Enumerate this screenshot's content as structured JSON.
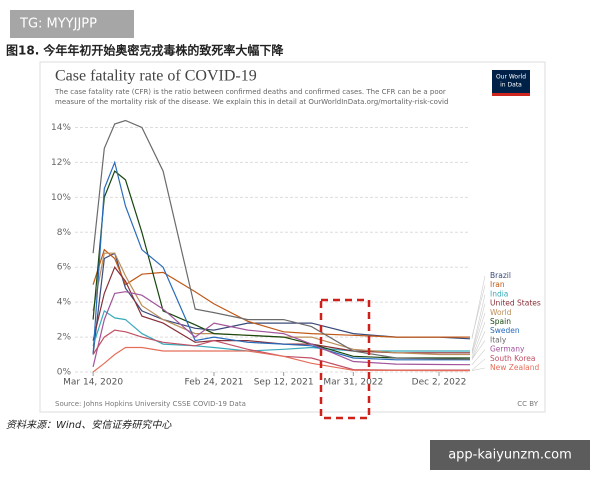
{
  "watermark_top": "TG: MYYJJPP",
  "figure_title": "图18. 今年年初开始奥密克戎毒株的致死率大幅下降",
  "footnote": "资料来源：Wind、安信证券研究中心",
  "watermark_bottom": "app-kaiyunzm.com",
  "chart_data": {
    "type": "line",
    "title": "Case fatality rate of COVID-19",
    "subtitle": [
      "The case fatality rate (CFR) is the ratio between confirmed deaths and confirmed cases. The CFR can be a poor",
      "measure of the mortality risk of the disease. We explain this in detail at OurWorldInData.org/mortality-risk-covid"
    ],
    "logo": [
      "Our World",
      "in Data"
    ],
    "source": "Source: Johns Hopkins University CSSE COVID-19 Data",
    "license": "CC BY",
    "x": [
      "2020-03-14",
      "2020-04-15",
      "2020-05-15",
      "2020-06-15",
      "2020-08-01",
      "2020-10-01",
      "2021-01-01",
      "2021-02-24",
      "2021-06-01",
      "2021-09-12",
      "2021-12-01",
      "2022-03-31",
      "2022-08-01",
      "2022-12-02",
      "2023-03-01"
    ],
    "xlim": [
      "2020-01-22",
      "2023-03-01"
    ],
    "xticks": [
      {
        "value": "2020-03-14",
        "label": "Mar 14, 2020"
      },
      {
        "value": "2021-02-24",
        "label": "Feb 24, 2021"
      },
      {
        "value": "2021-09-12",
        "label": "Sep 12, 2021"
      },
      {
        "value": "2022-03-31",
        "label": "Mar 31, 2022"
      },
      {
        "value": "2022-12-02",
        "label": "Dec 2, 2022"
      }
    ],
    "ylim": [
      0,
      14.6
    ],
    "yticks": [
      {
        "value": 0,
        "label": "0%"
      },
      {
        "value": 2,
        "label": "2%"
      },
      {
        "value": 4,
        "label": "4%"
      },
      {
        "value": 6,
        "label": "6%"
      },
      {
        "value": 8,
        "label": "8%"
      },
      {
        "value": 10,
        "label": "10%"
      },
      {
        "value": 12,
        "label": "12%"
      },
      {
        "value": 14,
        "label": "14%"
      }
    ],
    "grid": true,
    "series": [
      {
        "name": "Brazil",
        "color": "#3a4a7a",
        "values": [
          1.0,
          6.5,
          6.8,
          4.8,
          3.5,
          3.0,
          2.5,
          2.4,
          2.8,
          2.8,
          2.8,
          2.2,
          2.0,
          2.0,
          1.9
        ]
      },
      {
        "name": "Iran",
        "color": "#c05917",
        "values": [
          5.0,
          7.0,
          6.5,
          5.0,
          5.6,
          5.7,
          4.6,
          3.9,
          2.9,
          2.3,
          2.2,
          2.1,
          2.0,
          2.0,
          2.0
        ]
      },
      {
        "name": "India",
        "color": "#38aaba",
        "values": [
          1.5,
          3.5,
          3.1,
          3.0,
          2.2,
          1.6,
          1.5,
          1.4,
          1.2,
          1.3,
          1.4,
          1.2,
          1.2,
          1.2,
          1.2
        ]
      },
      {
        "name": "United States",
        "color": "#883039",
        "values": [
          1.8,
          4.5,
          6.0,
          5.2,
          3.2,
          2.8,
          1.7,
          1.8,
          1.8,
          1.6,
          1.6,
          1.2,
          1.1,
          1.1,
          1.1
        ]
      },
      {
        "name": "World",
        "color": "#bc8e5a",
        "values": [
          3.5,
          6.8,
          6.8,
          5.5,
          3.8,
          3.0,
          2.2,
          2.2,
          2.1,
          2.0,
          2.0,
          1.3,
          1.1,
          1.0,
          1.0
        ]
      },
      {
        "name": "Spain",
        "color": "#18470f",
        "values": [
          3.0,
          10.0,
          11.5,
          11.0,
          8.0,
          3.5,
          2.7,
          2.2,
          2.1,
          2.0,
          1.6,
          0.9,
          0.8,
          0.8,
          0.8
        ]
      },
      {
        "name": "Sweden",
        "color": "#286bbb",
        "values": [
          1.0,
          10.5,
          12.0,
          9.5,
          7.0,
          6.0,
          1.8,
          2.0,
          1.7,
          1.6,
          1.5,
          0.8,
          0.7,
          0.7,
          0.7
        ]
      },
      {
        "name": "Italy",
        "color": "#6b6b6b",
        "values": [
          6.8,
          12.8,
          14.2,
          14.4,
          14.0,
          11.5,
          3.6,
          3.4,
          3.0,
          3.0,
          2.6,
          1.2,
          0.8,
          0.75,
          0.73
        ]
      },
      {
        "name": "Germany",
        "color": "#a2559c",
        "values": [
          0.3,
          3.0,
          4.5,
          4.6,
          4.4,
          3.6,
          2.0,
          2.8,
          2.4,
          2.2,
          1.6,
          0.6,
          0.45,
          0.43,
          0.42
        ]
      },
      {
        "name": "South Korea",
        "color": "#c15065",
        "values": [
          1.0,
          2.0,
          2.4,
          2.3,
          2.0,
          1.7,
          1.5,
          1.8,
          1.3,
          0.9,
          0.8,
          0.14,
          0.11,
          0.11,
          0.11
        ]
      },
      {
        "name": "New Zealand",
        "color": "#e56e5a",
        "values": [
          0,
          0.5,
          1.0,
          1.4,
          1.4,
          1.2,
          1.2,
          1.2,
          1.2,
          0.9,
          0.5,
          0.1,
          0.09,
          0.08,
          0.08
        ]
      }
    ]
  }
}
